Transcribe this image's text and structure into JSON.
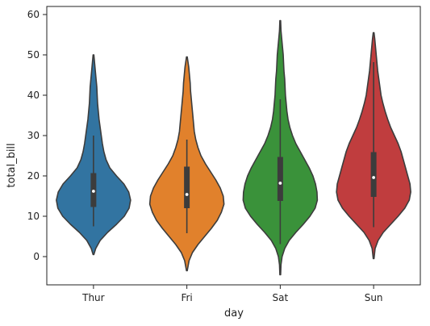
{
  "chart_data": {
    "type": "violin",
    "title": "",
    "xlabel": "day",
    "ylabel": "total_bill",
    "ylim": [
      -7,
      62
    ],
    "yticks": [
      0,
      10,
      20,
      30,
      40,
      50,
      60
    ],
    "categories": [
      "Thur",
      "Fri",
      "Sat",
      "Sun"
    ],
    "series": [
      {
        "category": "Thur",
        "color": "#3274a1",
        "min": 7.5,
        "q1": 12.4,
        "median": 16.2,
        "q3": 20.6,
        "max": 30.0,
        "kde_range": [
          0.5,
          50.0
        ],
        "density_profile": [
          [
            0.5,
            0.01
          ],
          [
            2,
            0.06
          ],
          [
            4,
            0.18
          ],
          [
            6,
            0.38
          ],
          [
            8,
            0.62
          ],
          [
            10,
            0.83
          ],
          [
            12,
            0.96
          ],
          [
            14,
            1.0
          ],
          [
            16,
            0.95
          ],
          [
            18,
            0.82
          ],
          [
            20,
            0.62
          ],
          [
            22,
            0.44
          ],
          [
            24,
            0.34
          ],
          [
            26,
            0.28
          ],
          [
            28,
            0.24
          ],
          [
            30,
            0.21
          ],
          [
            32,
            0.18
          ],
          [
            34,
            0.15
          ],
          [
            36,
            0.13
          ],
          [
            38,
            0.11
          ],
          [
            40,
            0.1
          ],
          [
            42,
            0.09
          ],
          [
            44,
            0.07
          ],
          [
            46,
            0.05
          ],
          [
            48,
            0.03
          ],
          [
            50,
            0.01
          ]
        ]
      },
      {
        "category": "Fri",
        "color": "#e1812c",
        "min": 5.8,
        "q1": 12.1,
        "median": 15.4,
        "q3": 22.2,
        "max": 29.0,
        "kde_range": [
          -3.5,
          49.5
        ],
        "density_profile": [
          [
            -3.5,
            0.01
          ],
          [
            -1,
            0.06
          ],
          [
            1,
            0.15
          ],
          [
            3,
            0.3
          ],
          [
            5,
            0.48
          ],
          [
            7,
            0.66
          ],
          [
            9,
            0.82
          ],
          [
            11,
            0.93
          ],
          [
            13,
            1.0
          ],
          [
            15,
            0.98
          ],
          [
            17,
            0.9
          ],
          [
            19,
            0.78
          ],
          [
            21,
            0.64
          ],
          [
            23,
            0.5
          ],
          [
            25,
            0.38
          ],
          [
            27,
            0.3
          ],
          [
            29,
            0.24
          ],
          [
            31,
            0.2
          ],
          [
            33,
            0.18
          ],
          [
            35,
            0.16
          ],
          [
            37,
            0.14
          ],
          [
            39,
            0.12
          ],
          [
            41,
            0.1
          ],
          [
            43,
            0.09
          ],
          [
            45,
            0.07
          ],
          [
            47,
            0.05
          ],
          [
            49.5,
            0.01
          ]
        ]
      },
      {
        "category": "Sat",
        "color": "#3a923a",
        "min": 3.1,
        "q1": 13.9,
        "median": 18.2,
        "q3": 24.6,
        "max": 39.0,
        "kde_range": [
          -4.5,
          58.5
        ],
        "density_profile": [
          [
            -4.5,
            0.01
          ],
          [
            -2,
            0.02
          ],
          [
            0,
            0.05
          ],
          [
            2,
            0.12
          ],
          [
            4,
            0.24
          ],
          [
            6,
            0.42
          ],
          [
            8,
            0.62
          ],
          [
            10,
            0.8
          ],
          [
            12,
            0.94
          ],
          [
            14,
            1.0
          ],
          [
            16,
            0.99
          ],
          [
            18,
            0.95
          ],
          [
            20,
            0.88
          ],
          [
            22,
            0.78
          ],
          [
            24,
            0.66
          ],
          [
            26,
            0.54
          ],
          [
            28,
            0.42
          ],
          [
            30,
            0.33
          ],
          [
            32,
            0.26
          ],
          [
            34,
            0.21
          ],
          [
            36,
            0.18
          ],
          [
            38,
            0.16
          ],
          [
            40,
            0.14
          ],
          [
            42,
            0.13
          ],
          [
            44,
            0.12
          ],
          [
            46,
            0.1
          ],
          [
            48,
            0.09
          ],
          [
            50,
            0.08
          ],
          [
            52,
            0.06
          ],
          [
            54,
            0.04
          ],
          [
            56,
            0.02
          ],
          [
            58.5,
            0.01
          ]
        ]
      },
      {
        "category": "Sun",
        "color": "#c03d3e",
        "min": 7.3,
        "q1": 14.9,
        "median": 19.6,
        "q3": 25.8,
        "max": 48.2,
        "kde_range": [
          -0.5,
          55.5
        ],
        "density_profile": [
          [
            -0.5,
            0.01
          ],
          [
            2,
            0.04
          ],
          [
            4,
            0.12
          ],
          [
            6,
            0.26
          ],
          [
            8,
            0.46
          ],
          [
            10,
            0.66
          ],
          [
            12,
            0.84
          ],
          [
            14,
            0.96
          ],
          [
            16,
            1.0
          ],
          [
            18,
            0.98
          ],
          [
            20,
            0.92
          ],
          [
            22,
            0.86
          ],
          [
            24,
            0.8
          ],
          [
            26,
            0.74
          ],
          [
            28,
            0.66
          ],
          [
            30,
            0.56
          ],
          [
            32,
            0.46
          ],
          [
            34,
            0.38
          ],
          [
            36,
            0.31
          ],
          [
            38,
            0.25
          ],
          [
            40,
            0.2
          ],
          [
            42,
            0.17
          ],
          [
            44,
            0.14
          ],
          [
            46,
            0.11
          ],
          [
            48,
            0.09
          ],
          [
            50,
            0.07
          ],
          [
            52,
            0.05
          ],
          [
            54,
            0.03
          ],
          [
            55.5,
            0.01
          ]
        ]
      }
    ],
    "grid": false,
    "legend": "none"
  }
}
